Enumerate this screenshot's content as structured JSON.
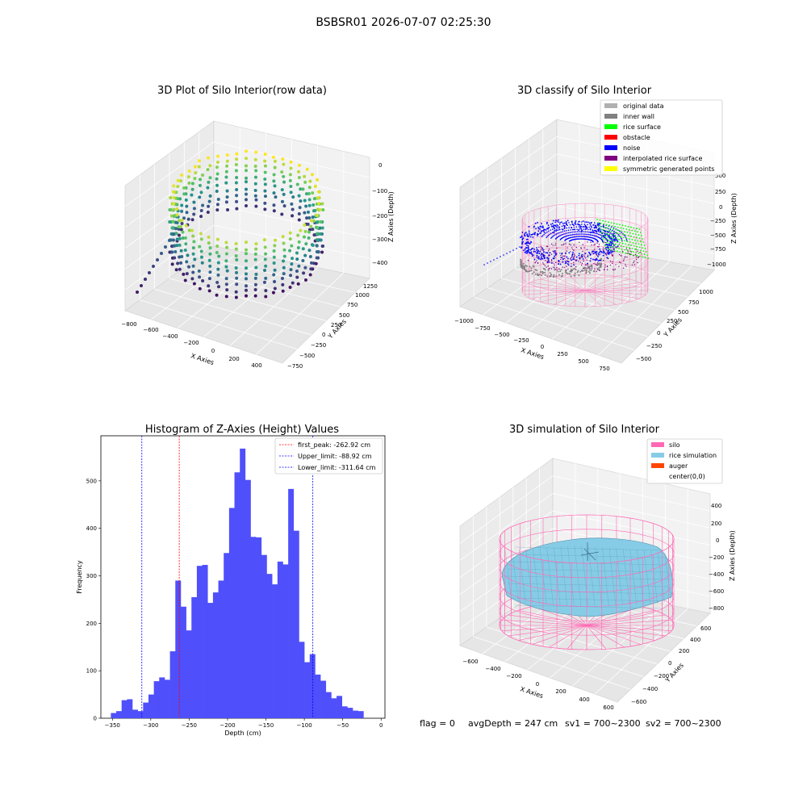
{
  "suptitle": "BSBSR01 2026-07-07 02:25:30",
  "footer": {
    "flag": "flag = 0",
    "avg": "avgDepth = 247 cm",
    "sv1": "sv1 = 700~2300",
    "sv2": "sv2 = 700~2300"
  },
  "colors": {
    "hist": "#4f4ffb",
    "first_peak": "#ff0000",
    "limits": "#0000ff",
    "silo": "#ff69b4",
    "rice_sim": "#87cce6",
    "auger": "#ff4500"
  },
  "panels": {
    "raw": {
      "title": "3D Plot of Silo Interior(row data)",
      "xlabel": "X Axies",
      "ylabel": "Y Axies",
      "zlabel": "Z Axies (Depth)",
      "xticks": [
        "−800",
        "−600",
        "−400",
        "−200",
        "0",
        "200",
        "400"
      ],
      "yticks": [
        "−750",
        "−500",
        "−250",
        "0",
        "250",
        "500",
        "750",
        "1000",
        "1250"
      ],
      "zticks": [
        "0",
        "−100",
        "−200",
        "−300",
        "−400"
      ]
    },
    "classify": {
      "title": "3D classify of Silo Interior",
      "xlabel": "X Axies",
      "ylabel": "Y Axies",
      "zlabel": "Z Axies (Depth)",
      "xticks": [
        "−1000",
        "−750",
        "−500",
        "−250",
        "0",
        "250",
        "500",
        "750"
      ],
      "yticks": [
        "−500",
        "−250",
        "0",
        "250",
        "500",
        "750",
        "1000"
      ],
      "zticks": [
        "500",
        "250",
        "0",
        "−250",
        "−500",
        "−750",
        "−1000"
      ],
      "legend": [
        {
          "label": "original data",
          "color": "#b0b0b0"
        },
        {
          "label": "inner wall",
          "color": "#808080"
        },
        {
          "label": "rice surface",
          "color": "#00ff00"
        },
        {
          "label": "obstacle",
          "color": "#ff0000"
        },
        {
          "label": "noise",
          "color": "#0000ff"
        },
        {
          "label": "interpolated rice surface",
          "color": "#800080"
        },
        {
          "label": "symmetric generated points",
          "color": "#ffff00"
        }
      ]
    },
    "simulation": {
      "title": "3D simulation of Silo Interior",
      "xlabel": "X Axies",
      "ylabel": "Y Axies",
      "zlabel": "Z Axies (Depth)",
      "xticks": [
        "−600",
        "−400",
        "−200",
        "0",
        "200",
        "400",
        "600"
      ],
      "yticks": [
        "−600",
        "−400",
        "−200",
        "0",
        "200",
        "400",
        "600"
      ],
      "zticks": [
        "400",
        "200",
        "0",
        "−200",
        "−400",
        "−600",
        "−800"
      ],
      "legend": [
        {
          "label": "silo",
          "color": "#ff69b4"
        },
        {
          "label": "rice simulation",
          "color": "#87cce6"
        },
        {
          "label": "auger",
          "color": "#ff4500"
        },
        {
          "label": "center(0,0)",
          "color": ""
        }
      ]
    }
  },
  "chart_data": {
    "type": "bar",
    "title": "Histogram of Z-Axies (Height) Values",
    "xlabel": "Depth (cm)",
    "ylabel": "Frequency",
    "xlim": [
      -365,
      5
    ],
    "ylim": [
      0,
      595
    ],
    "xticks": [
      -350,
      -300,
      -250,
      -200,
      -150,
      -100,
      -50,
      0
    ],
    "yticks": [
      0,
      100,
      200,
      300,
      400,
      500
    ],
    "bin_width": 7,
    "bin_start": -352,
    "values": [
      11,
      15,
      38,
      40,
      18,
      15,
      33,
      50,
      78,
      86,
      81,
      141,
      290,
      235,
      185,
      255,
      321,
      323,
      243,
      265,
      290,
      348,
      443,
      518,
      568,
      502,
      382,
      381,
      344,
      304,
      282,
      330,
      324,
      483,
      395,
      161,
      118,
      135,
      92,
      79,
      55,
      42,
      47,
      25,
      22,
      16,
      15
    ],
    "vlines": [
      {
        "x": -262.92,
        "label": "first_peak: -262.92 cm",
        "color": "#ff0000"
      },
      {
        "x": -88.92,
        "label": "Upper_limit: -88.92 cm",
        "color": "#0000ff"
      },
      {
        "x": -311.64,
        "label": "Lower_limit: -311.64 cm",
        "color": "#0000ff"
      }
    ],
    "legend_position": "top-right"
  }
}
